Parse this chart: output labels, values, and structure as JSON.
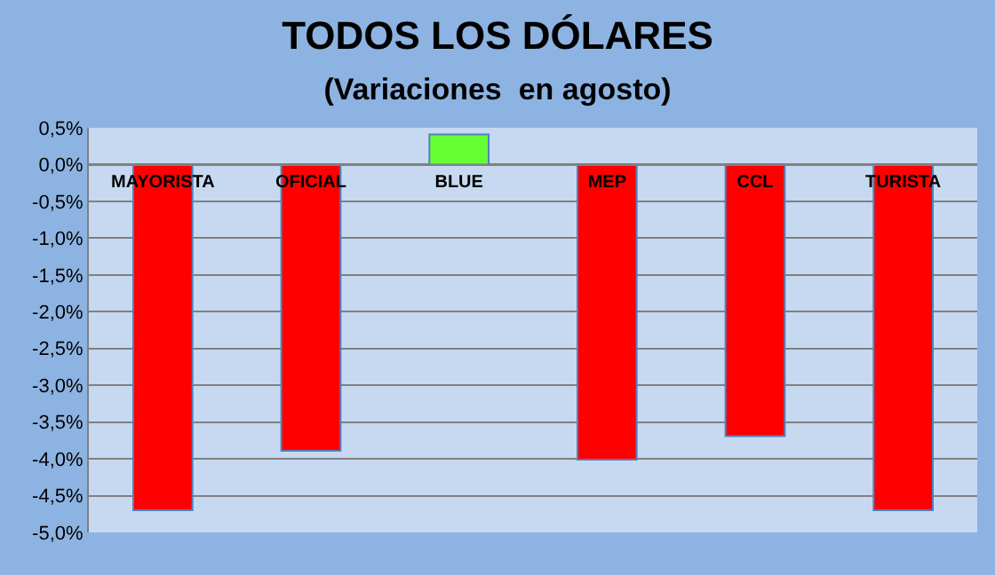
{
  "chart_data": {
    "type": "bar",
    "title": "TODOS LOS DÓLARES",
    "subtitle": "(Variaciones  en agosto)",
    "categories": [
      "MAYORISTA",
      "OFICIAL",
      "BLUE",
      "MEP",
      "CCL",
      "TURISTA"
    ],
    "values": [
      -4.7,
      -3.89,
      0.41,
      -4.01,
      -3.69,
      -4.7
    ],
    "colors": [
      "#ff0000",
      "#ff0000",
      "#66ff33",
      "#ff0000",
      "#ff0000",
      "#ff0000"
    ],
    "ylim": [
      -5,
      0.5
    ],
    "yticks": [
      {
        "value": 0.5,
        "label": "0,5%"
      },
      {
        "value": 0,
        "label": "0,0%"
      },
      {
        "value": -0.5,
        "label": "-0,5%"
      },
      {
        "value": -1,
        "label": "-1,0%"
      },
      {
        "value": -1.5,
        "label": "-1,5%"
      },
      {
        "value": -2,
        "label": "-2,0%"
      },
      {
        "value": -2.5,
        "label": "-2,5%"
      },
      {
        "value": -3,
        "label": "-3,0%"
      },
      {
        "value": -3.5,
        "label": "-3,5%"
      },
      {
        "value": -4,
        "label": "-4,0%"
      },
      {
        "value": -4.5,
        "label": "-4,5%"
      },
      {
        "value": -5,
        "label": "-5,0%"
      }
    ],
    "grid": "y"
  }
}
